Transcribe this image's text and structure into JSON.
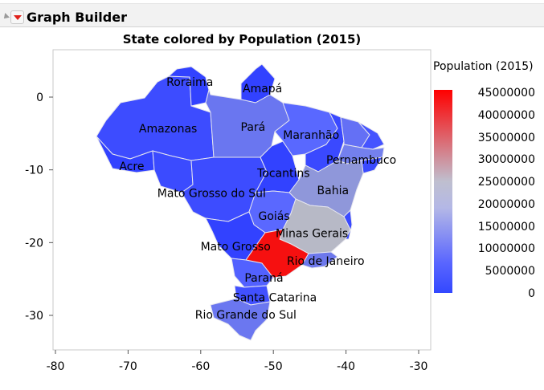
{
  "window": {
    "title": "Graph Builder"
  },
  "chart_data": {
    "type": "choropleth-map",
    "title": "State colored by Population (2015)",
    "color_variable": "Population (2015)",
    "xlim": [
      -80,
      -30
    ],
    "ylim": [
      -35,
      5
    ],
    "x_ticks": [
      "-80",
      "-70",
      "-60",
      "-50",
      "-40",
      "-30"
    ],
    "y_ticks": [
      "0",
      "-10",
      "-20",
      "-30"
    ],
    "legend": {
      "title": "Population (2015)",
      "placement": "right",
      "min": 0,
      "max": 45000000,
      "labels": [
        "45000000",
        "40000000",
        "35000000",
        "30000000",
        "25000000",
        "20000000",
        "15000000",
        "10000000",
        "5000000",
        "0"
      ],
      "color_low": "#3348ff",
      "color_mid": "#bfbfbf",
      "color_high": "#ff0000"
    },
    "regions": [
      {
        "name": "Roraima",
        "lon": -61.5,
        "lat": 2.1
      },
      {
        "name": "Amapá",
        "lon": -51.5,
        "lat": 1.2
      },
      {
        "name": "Amazonas",
        "lon": -64.5,
        "lat": -4.3
      },
      {
        "name": "Pará",
        "lon": -52.8,
        "lat": -4.1
      },
      {
        "name": "Maranhão",
        "lon": -44.8,
        "lat": -5.2
      },
      {
        "name": "Pernambuco",
        "lon": -37.9,
        "lat": -8.6
      },
      {
        "name": "Acre",
        "lon": -69.5,
        "lat": -9.5
      },
      {
        "name": "Tocantins",
        "lon": -48.6,
        "lat": -10.4
      },
      {
        "name": "Bahia",
        "lon": -41.8,
        "lat": -12.8
      },
      {
        "name": "Mato Grosso do Sul",
        "lon": -58.5,
        "lat": -13.2
      },
      {
        "name": "Goiás",
        "lon": -49.9,
        "lat": -16.3
      },
      {
        "name": "Minas Gerais",
        "lon": -44.7,
        "lat": -18.7
      },
      {
        "name": "Mato Grosso",
        "lon": -55.2,
        "lat": -20.5
      },
      {
        "name": "Rio de Janeiro",
        "lon": -42.8,
        "lat": -22.5
      },
      {
        "name": "Paraná",
        "lon": -51.3,
        "lat": -24.8
      },
      {
        "name": "Santa Catarina",
        "lon": -49.8,
        "lat": -27.5
      },
      {
        "name": "Rio Grande do Sul",
        "lon": -53.8,
        "lat": -29.9
      }
    ]
  }
}
